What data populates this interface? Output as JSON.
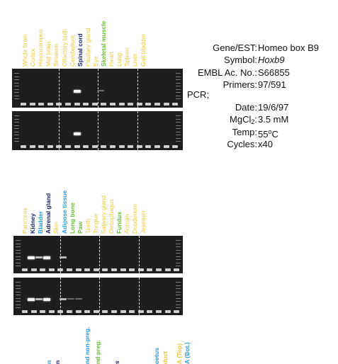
{
  "panel1": {
    "labels": [
      {
        "text": "Whole brain",
        "color": "yellow"
      },
      {
        "text": "Cortex",
        "color": "yellow"
      },
      {
        "text": "Hippocampus",
        "color": "yellow"
      },
      {
        "text": "Mid brain",
        "color": "yellow"
      },
      {
        "text": "Striatum",
        "color": "yellow"
      },
      {
        "text": "Olfactory bulb",
        "color": "yellow"
      },
      {
        "text": "Cerebellum",
        "color": "yellow"
      },
      {
        "text": "Spinal cord",
        "color": "navy"
      },
      {
        "text": "Pituitary gland",
        "color": "yellow"
      },
      {
        "text": "Eye",
        "color": "yellow"
      },
      {
        "text": "Skeletal muscle",
        "color": "green"
      },
      {
        "text": "Heart",
        "color": "yellow"
      },
      {
        "text": "Lung",
        "color": "yellow"
      },
      {
        "text": "Spleen",
        "color": "yellow"
      },
      {
        "text": "Liver",
        "color": "yellow"
      },
      {
        "text": "Gall bladder",
        "color": "yellow"
      }
    ]
  },
  "panel2": {
    "labels": [
      {
        "text": "Pancreas",
        "color": "yellow"
      },
      {
        "text": "Kidney",
        "color": "navy"
      },
      {
        "text": "Bladder",
        "color": "blue"
      },
      {
        "text": "Adrenal gland",
        "color": "navy"
      },
      {
        "text": "Skin",
        "color": "yellow"
      },
      {
        "text": "Adipose tissue",
        "color": "blue"
      },
      {
        "text": "Long bone",
        "color": "green"
      },
      {
        "text": "Paw",
        "color": "green"
      },
      {
        "text": "Teeth",
        "color": "yellow"
      },
      {
        "text": "Tongue",
        "color": "yellow"
      },
      {
        "text": "Salivary gland",
        "color": "yellow"
      },
      {
        "text": "Oesophagus",
        "color": "yellow"
      },
      {
        "text": "Fundus",
        "color": "green"
      },
      {
        "text": "Antrum",
        "color": "yellow"
      },
      {
        "text": "Duodenum",
        "color": "yellow"
      },
      {
        "text": "Jejunum",
        "color": "yellow"
      }
    ]
  },
  "info": {
    "gene_key": "Gene/EST:",
    "gene_val": "Homeo box B9",
    "symbol_key": "Symbol:",
    "symbol_val": "Hoxb9",
    "embl_key": "EMBL Ac. No.:",
    "embl_val": "S66855",
    "primers_key": "Primers:",
    "primers_val": "97/591",
    "pcr_label": "PCR;",
    "date_key": "Date:",
    "date_val": "19/6/97",
    "mgcl_key_a": "MgCl",
    "mgcl_key_sub": "2",
    "mgcl_key_b": ":",
    "mgcl_val": "3.5 mM",
    "temp_key": "Temp:",
    "temp_val_a": "55",
    "temp_val_sup": "o",
    "temp_val_b": "C",
    "cycles_key": "Cycles:",
    "cycles_val": "x40"
  },
  "colors": {
    "yellow": "#e8c73f",
    "navy": "#1b1f6e",
    "green": "#6dbb3a",
    "blue": "#2a9bd6",
    "gel": "#1e1e1e"
  },
  "bands": {
    "panel1_top": [
      {
        "lane": 7,
        "strength": "strong"
      },
      {
        "lane": 10,
        "strength": "faint"
      }
    ],
    "panel1_bottom": [
      {
        "lane": 7,
        "strength": "strong"
      }
    ],
    "panel2_top": [
      {
        "lane": 1,
        "strength": "strong"
      },
      {
        "lane": 2,
        "strength": "mid"
      },
      {
        "lane": 3,
        "strength": "strong"
      },
      {
        "lane": 5,
        "strength": "mid"
      }
    ],
    "panel2_bottom": [
      {
        "lane": 1,
        "strength": "strong"
      },
      {
        "lane": 2,
        "strength": "mid"
      },
      {
        "lane": 3,
        "strength": "strong"
      },
      {
        "lane": 5,
        "strength": "mid"
      },
      {
        "lane": 6,
        "strength": "faint"
      },
      {
        "lane": 7,
        "strength": "faint"
      }
    ]
  },
  "bottom_cut_labels": [
    {
      "text": "n",
      "color": "blue"
    },
    {
      "text": "n",
      "color": "navy"
    },
    {
      "text": "nd non-preg.",
      "color": "blue"
    },
    {
      "text": "nd preg.",
      "color": "green"
    },
    {
      "text": "s",
      "color": "navy"
    },
    {
      "text": "oetus",
      "color": "blue"
    },
    {
      "text": "duct",
      "color": "yellow"
    },
    {
      "text": "A (Top)",
      "color": "yellow"
    },
    {
      "text": "A (Bot.)",
      "color": "blue"
    }
  ]
}
